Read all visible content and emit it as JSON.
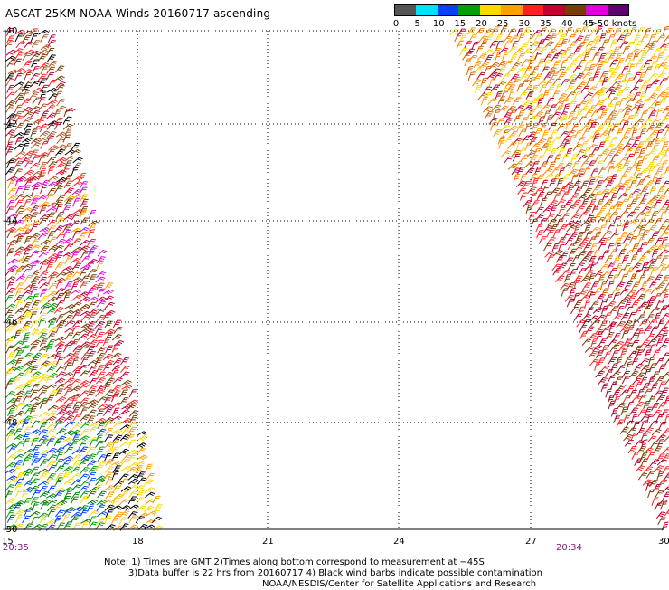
{
  "title": "ASCAT 25KM NOAA Winds 20160717 ascending",
  "legend": {
    "labels": [
      "0",
      "5",
      "10",
      "15",
      "20",
      "25",
      "30",
      "35",
      "40",
      "45",
      ">50 knots"
    ],
    "colors": [
      "#555555",
      "#00e0ff",
      "#0040ff",
      "#00a000",
      "#ffd800",
      "#ffa000",
      "#ff2020",
      "#c00030",
      "#7a3a00",
      "#e000e0",
      "#60006e"
    ]
  },
  "axes": {
    "lat_labels": [
      "-40",
      "-42",
      "-44",
      "-46",
      "-48",
      "-50"
    ],
    "lon_labels": [
      "15",
      "18",
      "21",
      "24",
      "27",
      "30"
    ]
  },
  "times": {
    "left": "20:35",
    "right": "20:34"
  },
  "notes": {
    "line1": "Note: 1) Times are GMT 2)Times along bottom correspond to measurement at −45S",
    "line2": "3)Data buffer is 22 hrs from 20160717 4) Black wind barbs indicate possible contamination",
    "line3": "NOAA/NESDIS/Center for Satellite Applications and Research"
  }
}
